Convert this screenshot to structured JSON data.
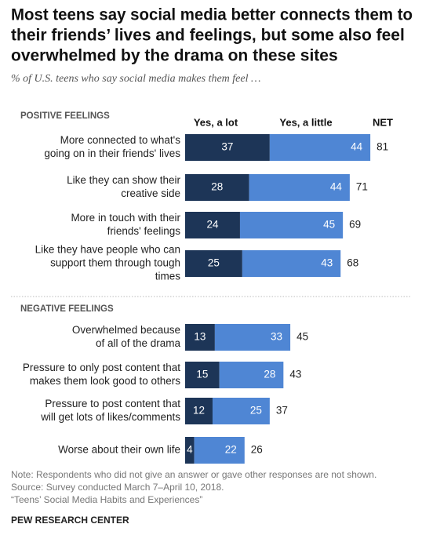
{
  "title": [
    "Most teens say social media better connects them to",
    "their friends’ lives and feelings, but some also feel",
    "overwhelmed by the drama on these sites"
  ],
  "subtitle": "% of U.S. teens who say social media makes them feel …",
  "note": [
    "Note: Respondents who did not give an answer or gave other responses are not shown.",
    "Source: Survey conducted March 7–April 10, 2018.",
    "“Teens’ Social Media Habits and Experiences”"
  ],
  "footer": "PEW RESEARCH CENTER",
  "chart_data": [
    {
      "type": "bar",
      "stacked": true,
      "orientation": "horizontal",
      "panel_title": "POSITIVE FEELINGS",
      "net_label": "NET",
      "categories": [
        [
          "More connected to what's",
          "going on in their friends' lives"
        ],
        [
          "Like they can show their",
          "creative side"
        ],
        [
          "More in touch with their",
          "friends' feelings"
        ],
        [
          "Like they have people who can",
          "support them through tough",
          "times"
        ]
      ],
      "series": [
        {
          "name": "Yes, a lot",
          "color": "#1d3557",
          "values": [
            37,
            28,
            24,
            25
          ]
        },
        {
          "name": "Yes, a little",
          "color": "#4f86d4",
          "values": [
            44,
            44,
            45,
            43
          ]
        }
      ],
      "net_values": [
        81,
        71,
        69,
        68
      ]
    },
    {
      "type": "bar",
      "stacked": true,
      "orientation": "horizontal",
      "panel_title": "NEGATIVE FEELINGS",
      "categories": [
        [
          "Overwhelmed because",
          "of all of the drama"
        ],
        [
          "Pressure to only post content that",
          "makes them look good to others"
        ],
        [
          "Pressure to post content that",
          "will get lots of likes/comments"
        ],
        [
          "Worse about their own life"
        ]
      ],
      "series": [
        {
          "color": "#1d3557",
          "values": [
            13,
            15,
            12,
            4
          ]
        },
        {
          "color": "#4f86d4",
          "values": [
            33,
            28,
            25,
            22
          ]
        }
      ],
      "net_values": [
        45,
        43,
        37,
        26
      ]
    }
  ]
}
